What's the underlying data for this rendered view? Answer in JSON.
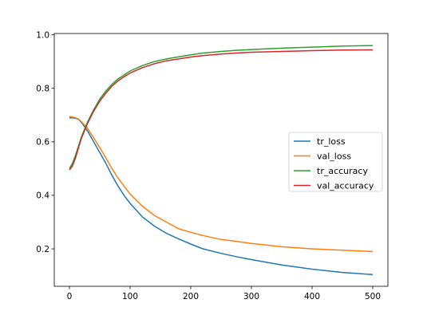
{
  "chart_data": {
    "type": "line",
    "title": "",
    "xlabel": "",
    "ylabel": "",
    "xlim": [
      -25,
      525
    ],
    "ylim": [
      0.06,
      1.005
    ],
    "xticks": [
      0,
      100,
      200,
      300,
      400,
      500
    ],
    "yticks": [
      0.2,
      0.4,
      0.6,
      0.8,
      1.0
    ],
    "xtick_labels": [
      "0",
      "100",
      "200",
      "300",
      "400",
      "500"
    ],
    "ytick_labels": [
      "0.2",
      "0.4",
      "0.6",
      "0.8",
      "1.0"
    ],
    "grid": false,
    "legend_position": "center-right",
    "x": [
      0,
      5,
      10,
      15,
      20,
      30,
      40,
      50,
      60,
      70,
      80,
      90,
      100,
      120,
      140,
      160,
      180,
      200,
      220,
      250,
      275,
      300,
      350,
      400,
      450,
      500
    ],
    "series": [
      {
        "name": "tr_loss",
        "color": "#1f77b4",
        "values": [
          0.69,
          0.69,
          0.688,
          0.684,
          0.672,
          0.64,
          0.6,
          0.56,
          0.52,
          0.475,
          0.435,
          0.4,
          0.37,
          0.32,
          0.285,
          0.258,
          0.237,
          0.218,
          0.2,
          0.183,
          0.171,
          0.16,
          0.14,
          0.124,
          0.112,
          0.104
        ]
      },
      {
        "name": "val_loss",
        "color": "#ff7f0e",
        "values": [
          0.695,
          0.693,
          0.69,
          0.685,
          0.675,
          0.65,
          0.615,
          0.578,
          0.54,
          0.5,
          0.465,
          0.435,
          0.405,
          0.36,
          0.325,
          0.3,
          0.275,
          0.262,
          0.25,
          0.235,
          0.228,
          0.22,
          0.208,
          0.2,
          0.195,
          0.19
        ]
      },
      {
        "name": "tr_accuracy",
        "color": "#2ca02c",
        "values": [
          0.5,
          0.52,
          0.55,
          0.585,
          0.62,
          0.675,
          0.72,
          0.76,
          0.79,
          0.815,
          0.835,
          0.85,
          0.865,
          0.885,
          0.9,
          0.91,
          0.918,
          0.925,
          0.932,
          0.938,
          0.942,
          0.945,
          0.95,
          0.954,
          0.958,
          0.96
        ]
      },
      {
        "name": "val_accuracy",
        "color": "#d62728",
        "values": [
          0.495,
          0.51,
          0.54,
          0.578,
          0.615,
          0.67,
          0.715,
          0.752,
          0.782,
          0.808,
          0.828,
          0.843,
          0.857,
          0.877,
          0.892,
          0.903,
          0.91,
          0.917,
          0.922,
          0.928,
          0.932,
          0.935,
          0.938,
          0.941,
          0.943,
          0.944
        ]
      }
    ]
  }
}
